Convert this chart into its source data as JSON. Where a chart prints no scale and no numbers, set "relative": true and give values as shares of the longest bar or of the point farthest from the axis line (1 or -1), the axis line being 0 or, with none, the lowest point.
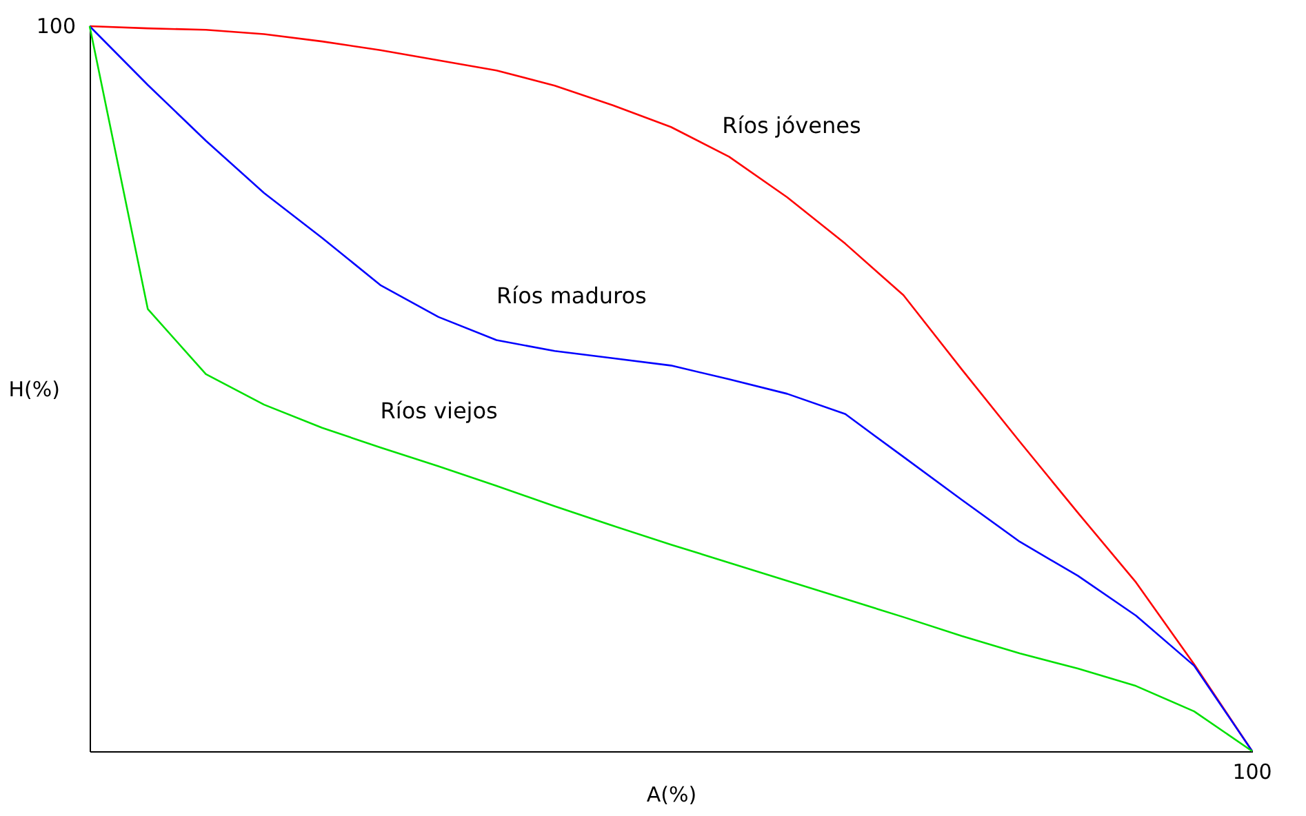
{
  "chart_data": {
    "type": "line",
    "relative": true,
    "xlabel": "A(%)",
    "ylabel": "H(%)",
    "annotations": [
      "100",
      "100"
    ],
    "grid": false,
    "legend": false,
    "marker": "none",
    "line_style": "solid",
    "categories": [
      null,
      null,
      null,
      null,
      null,
      null,
      null,
      null,
      null,
      null,
      null,
      null,
      null,
      null,
      null,
      null,
      null,
      null,
      null,
      null,
      null
    ],
    "series": [
      {
        "name": "Ríos jóvenes",
        "color": "#ff0000",
        "values": [
          1,
          0.997,
          0.995,
          0.989,
          0.979,
          0.967,
          0.953,
          0.939,
          0.918,
          0.891,
          0.861,
          0.82,
          0.764,
          0.7,
          0.629,
          0.527,
          0.427,
          0.329,
          0.233,
          0.12,
          0
        ]
      },
      {
        "name": "Ríos maduros",
        "color": "#0000ff",
        "values": [
          1,
          0.919,
          0.842,
          0.77,
          0.708,
          0.643,
          0.599,
          0.567,
          0.552,
          0.542,
          0.532,
          0.513,
          0.493,
          0.465,
          0.406,
          0.347,
          0.289,
          0.242,
          0.187,
          0.118,
          0
        ]
      },
      {
        "name": "Ríos viejos",
        "color": "#00e000",
        "values": [
          1,
          0.61,
          0.52,
          0.478,
          0.446,
          0.419,
          0.393,
          0.366,
          0.338,
          0.311,
          0.285,
          0.26,
          0.235,
          0.21,
          0.185,
          0.159,
          0.135,
          0.114,
          0.09,
          0.055,
          0
        ]
      }
    ]
  }
}
